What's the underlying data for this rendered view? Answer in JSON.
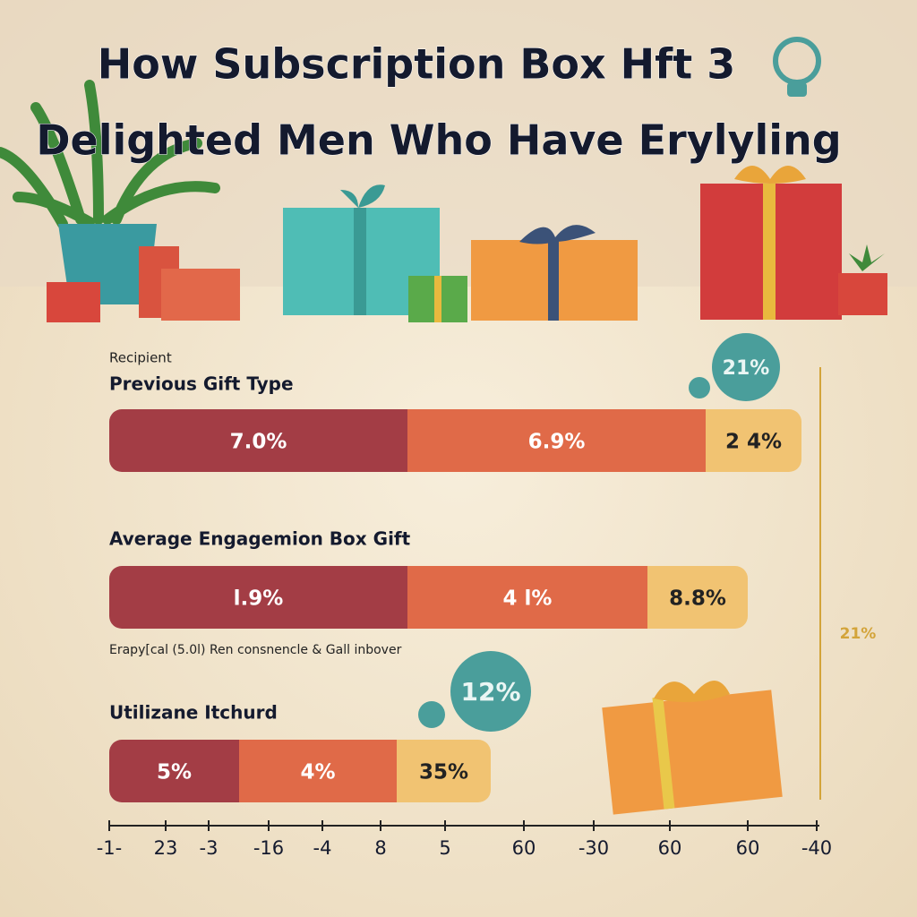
{
  "title": [
    "How Subscription Box Hft 3",
    "Delighted Men Who Have Erylyling"
  ],
  "caption": "Recipient",
  "rows": [
    {
      "label": "Previous Gift Type",
      "segments": [
        "7.0%",
        "6.9%",
        "2 4%"
      ],
      "bubble": "21%"
    },
    {
      "label": "Average Engagemion Box Gift",
      "segments": [
        "l.9%",
        "4 l%",
        "8.8%"
      ]
    },
    {
      "label": "Utilizane Itchurd",
      "segments": [
        "5%",
        "4%",
        "35%"
      ],
      "bubble": "12%"
    }
  ],
  "note": "Erapy[cal (5.0l) Ren consnencle & Gall inbover",
  "side_label": "21%",
  "axis_labels": [
    "-1-",
    "23",
    "-3",
    "-16",
    "-4",
    "8",
    "5",
    "60",
    "-30",
    "60",
    "60",
    "-40"
  ]
}
